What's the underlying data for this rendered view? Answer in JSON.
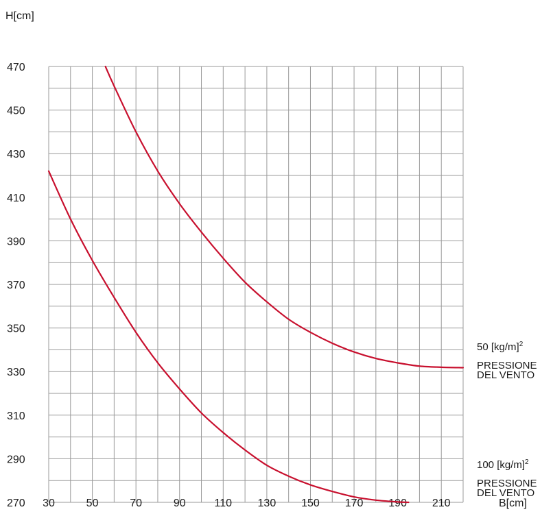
{
  "chart_data": {
    "type": "line",
    "xlabel": "B[cm]",
    "ylabel": "H[cm]",
    "xlim": [
      30,
      220
    ],
    "ylim": [
      270,
      470
    ],
    "x_ticks": [
      30,
      50,
      70,
      90,
      110,
      130,
      150,
      170,
      190,
      210
    ],
    "y_ticks": [
      270,
      290,
      310,
      330,
      350,
      370,
      390,
      410,
      430,
      450,
      470
    ],
    "x_grid_step": 10,
    "y_grid_step": 10,
    "grid": true,
    "line_color": "#c8102e",
    "grid_color": "#9a9a9a",
    "series": [
      {
        "value_label": "50 [kg/m]",
        "unit_sup": "2",
        "label_line1": "PRESSIONE",
        "label_line2": "DEL VENTO",
        "points": [
          [
            56,
            470
          ],
          [
            60,
            461
          ],
          [
            70,
            440
          ],
          [
            80,
            422
          ],
          [
            90,
            407
          ],
          [
            100,
            394
          ],
          [
            110,
            382
          ],
          [
            120,
            371
          ],
          [
            130,
            362
          ],
          [
            140,
            354
          ],
          [
            150,
            348
          ],
          [
            160,
            343
          ],
          [
            170,
            339
          ],
          [
            180,
            336
          ],
          [
            190,
            334
          ],
          [
            200,
            332.5
          ],
          [
            210,
            332
          ],
          [
            220,
            331.8
          ]
        ]
      },
      {
        "value_label": "100 [kg/m]",
        "unit_sup": "2",
        "label_line1": "PRESSIONE",
        "label_line2": "DEL VENTO",
        "points": [
          [
            30,
            422
          ],
          [
            40,
            400
          ],
          [
            50,
            381
          ],
          [
            60,
            364
          ],
          [
            70,
            348
          ],
          [
            80,
            334
          ],
          [
            90,
            322
          ],
          [
            100,
            311
          ],
          [
            110,
            302
          ],
          [
            120,
            294
          ],
          [
            130,
            287
          ],
          [
            140,
            282
          ],
          [
            150,
            278
          ],
          [
            160,
            275
          ],
          [
            170,
            272.5
          ],
          [
            180,
            271
          ],
          [
            190,
            270.2
          ],
          [
            195,
            270
          ]
        ]
      }
    ]
  }
}
